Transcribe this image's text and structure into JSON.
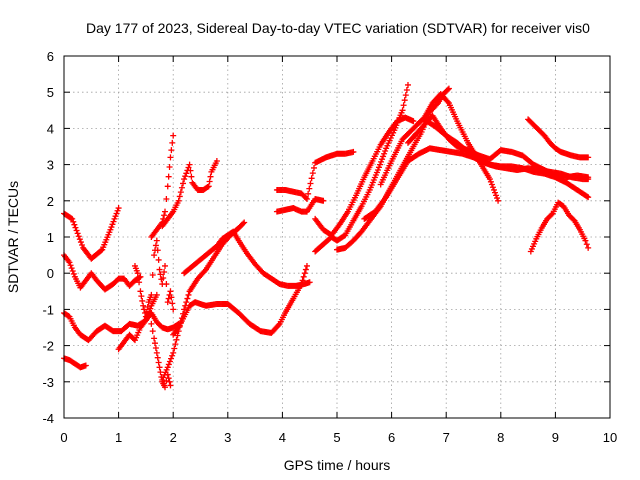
{
  "chart_data": {
    "type": "scatter",
    "title": "Day 177 of 2023, Sidereal Day-to-day VTEC variation (SDTVAR) for receiver vis0",
    "xlabel": "GPS time / hours",
    "ylabel": "SDTVAR / TECUs",
    "xlim": [
      0,
      10
    ],
    "ylim": [
      -4,
      6
    ],
    "xticks": [
      "0",
      "1",
      "2",
      "3",
      "4",
      "5",
      "6",
      "7",
      "8",
      "9",
      "10"
    ],
    "yticks": [
      "-4",
      "-3",
      "-2",
      "-1",
      "0",
      "1",
      "2",
      "3",
      "4",
      "5",
      "6"
    ],
    "grid": true,
    "marker": "+",
    "color": "#ff0000",
    "series": [
      {
        "x": [
          0.0,
          0.15,
          0.25,
          0.35,
          0.5,
          0.7,
          0.85,
          1.0
        ],
        "y": [
          1.65,
          1.5,
          1.1,
          0.7,
          0.4,
          0.65,
          1.2,
          1.8
        ]
      },
      {
        "x": [
          0.0,
          0.1,
          0.2,
          0.3,
          0.4,
          0.5,
          0.6,
          0.75,
          0.9,
          1.0,
          1.1,
          1.2,
          1.3,
          1.4
        ],
        "y": [
          0.5,
          0.3,
          -0.1,
          -0.4,
          -0.2,
          0.0,
          -0.2,
          -0.45,
          -0.3,
          -0.15,
          -0.15,
          -0.35,
          -0.2,
          -0.1
        ]
      },
      {
        "x": [
          0.0,
          0.1,
          0.2,
          0.3,
          0.45,
          0.6,
          0.75,
          0.9,
          1.05,
          1.2,
          1.35,
          1.5,
          1.6,
          1.7,
          1.8,
          1.9,
          2.0,
          2.1
        ],
        "y": [
          -1.1,
          -1.2,
          -1.5,
          -1.7,
          -1.85,
          -1.6,
          -1.45,
          -1.6,
          -1.6,
          -1.4,
          -1.45,
          -1.3,
          -1.1,
          -1.35,
          -1.5,
          -1.55,
          -1.5,
          -1.4
        ]
      },
      {
        "x": [
          0.0,
          0.1,
          0.2,
          0.3,
          0.4
        ],
        "y": [
          -2.35,
          -2.4,
          -2.5,
          -2.6,
          -2.55
        ]
      },
      {
        "x": [
          1.0,
          1.1,
          1.2,
          1.3,
          1.4,
          1.5,
          1.6,
          1.7
        ],
        "y": [
          -2.1,
          -1.9,
          -1.7,
          -1.85,
          -1.5,
          -1.3,
          -0.9,
          -0.6
        ]
      },
      {
        "x": [
          1.3,
          1.35,
          1.4,
          1.45,
          1.5,
          1.55,
          1.6,
          1.65,
          1.7,
          1.75,
          1.8,
          1.85,
          1.9,
          1.95,
          2.0
        ],
        "y": [
          0.2,
          0.0,
          -0.5,
          -0.9,
          -1.2,
          -0.8,
          -0.6,
          0.5,
          0.9,
          0.1,
          -0.3,
          0.2,
          -0.8,
          -0.5,
          -1.0
        ]
      },
      {
        "x": [
          1.6,
          1.65,
          1.7,
          1.75,
          1.8,
          1.85,
          1.9,
          1.95
        ],
        "y": [
          -1.4,
          -1.8,
          -2.2,
          -2.6,
          -3.0,
          -3.15,
          -2.8,
          -3.1
        ]
      },
      {
        "x": [
          1.6,
          1.7,
          1.8,
          1.85,
          1.9,
          1.95,
          2.0
        ],
        "y": [
          1.0,
          1.2,
          1.4,
          1.7,
          2.4,
          3.2,
          3.8
        ]
      },
      {
        "x": [
          1.8,
          1.9,
          2.0,
          2.1,
          2.2,
          2.3,
          2.35,
          2.45,
          2.55,
          2.65,
          2.7,
          2.8
        ],
        "y": [
          1.3,
          1.5,
          1.7,
          2.0,
          2.6,
          3.0,
          2.5,
          2.3,
          2.3,
          2.4,
          2.8,
          3.1
        ]
      },
      {
        "x": [
          1.8,
          1.9,
          2.0,
          2.1,
          2.2,
          2.3,
          2.45,
          2.6,
          2.75,
          2.9,
          3.05,
          3.2,
          3.3
        ],
        "y": [
          -2.95,
          -2.6,
          -2.2,
          -1.6,
          -1.0,
          -0.5,
          -0.15,
          0.1,
          0.45,
          0.8,
          1.05,
          1.25,
          1.4
        ]
      },
      {
        "x": [
          2.0,
          2.1,
          2.2,
          2.3,
          2.4,
          2.6,
          2.8,
          3.0,
          3.2,
          3.4,
          3.6,
          3.8,
          3.95,
          4.05,
          4.2,
          4.35,
          4.45
        ],
        "y": [
          -1.7,
          -1.5,
          -1.2,
          -0.9,
          -0.8,
          -0.9,
          -0.85,
          -0.85,
          -1.1,
          -1.4,
          -1.6,
          -1.65,
          -1.4,
          -1.1,
          -0.7,
          -0.3,
          0.2
        ]
      },
      {
        "x": [
          2.2,
          2.4,
          2.6,
          2.8,
          2.9,
          3.0,
          3.1,
          3.2,
          3.35,
          3.5,
          3.65,
          3.8,
          3.95,
          4.1,
          4.25,
          4.4,
          4.5
        ],
        "y": [
          0.0,
          0.25,
          0.5,
          0.75,
          0.95,
          1.05,
          1.15,
          0.9,
          0.55,
          0.25,
          0.0,
          -0.15,
          -0.3,
          -0.35,
          -0.35,
          -0.3,
          -0.25
        ]
      },
      {
        "x": [
          3.9,
          4.05,
          4.2,
          4.35,
          4.45,
          4.6,
          4.8,
          5.0,
          5.15,
          5.3
        ],
        "y": [
          2.3,
          2.3,
          2.25,
          2.2,
          2.05,
          3.05,
          3.2,
          3.3,
          3.3,
          3.35
        ]
      },
      {
        "x": [
          3.9,
          4.05,
          4.2,
          4.35,
          4.45,
          4.6,
          4.75
        ],
        "y": [
          1.7,
          1.75,
          1.8,
          1.7,
          1.7,
          2.05,
          2.0
        ]
      },
      {
        "x": [
          4.6,
          4.75,
          4.9,
          5.0,
          5.15,
          5.3,
          5.45,
          5.6,
          5.75,
          5.9,
          6.05,
          6.2,
          6.3
        ],
        "y": [
          0.6,
          0.8,
          1.0,
          0.9,
          1.05,
          1.45,
          1.85,
          2.3,
          2.85,
          3.45,
          3.95,
          4.5,
          5.2
        ]
      },
      {
        "x": [
          4.6,
          4.75,
          4.9,
          5.05,
          5.2,
          5.35,
          5.5,
          5.65,
          5.8,
          5.95,
          6.1,
          6.25,
          6.4
        ],
        "y": [
          1.5,
          1.2,
          1.05,
          1.35,
          1.7,
          2.15,
          2.65,
          3.1,
          3.55,
          3.9,
          4.2,
          4.3,
          4.2
        ]
      },
      {
        "x": [
          5.0,
          5.15,
          5.3,
          5.45,
          5.6,
          5.8,
          6.0,
          6.2,
          6.4,
          6.55,
          6.7,
          6.85,
          6.95,
          7.05
        ],
        "y": [
          0.65,
          0.7,
          0.9,
          1.15,
          1.45,
          1.85,
          2.4,
          2.95,
          3.5,
          3.9,
          4.45,
          4.7,
          4.95,
          5.1
        ]
      },
      {
        "x": [
          5.5,
          5.7,
          5.9,
          6.1,
          6.3,
          6.5,
          6.7,
          6.9,
          7.1,
          7.3,
          7.5,
          7.7,
          7.9,
          8.1,
          8.3,
          8.5,
          8.7,
          8.9,
          9.1,
          9.3,
          9.5,
          9.6
        ],
        "y": [
          1.5,
          1.7,
          2.1,
          2.6,
          3.1,
          3.3,
          3.45,
          3.4,
          3.35,
          3.3,
          3.2,
          3.05,
          2.95,
          2.9,
          2.85,
          2.9,
          2.85,
          2.8,
          2.75,
          2.65,
          2.6,
          2.6
        ]
      },
      {
        "x": [
          5.8,
          6.0,
          6.2,
          6.4,
          6.6,
          6.75,
          6.9,
          7.05,
          7.2,
          7.4,
          7.6,
          7.8,
          7.95
        ],
        "y": [
          2.45,
          3.1,
          3.7,
          4.0,
          4.3,
          4.7,
          4.95,
          4.7,
          4.2,
          3.6,
          3.1,
          2.6,
          2.0
        ]
      },
      {
        "x": [
          6.3,
          6.45,
          6.6,
          6.75,
          6.9,
          7.05,
          7.2,
          7.4,
          7.6,
          7.8,
          8.0,
          8.2,
          8.4,
          8.6,
          8.8,
          9.0,
          9.2,
          9.4,
          9.6
        ],
        "y": [
          3.6,
          3.85,
          4.1,
          4.35,
          4.0,
          3.7,
          3.5,
          3.4,
          3.25,
          3.15,
          3.4,
          3.35,
          3.25,
          3.0,
          2.85,
          2.7,
          2.65,
          2.7,
          2.65
        ]
      },
      {
        "x": [
          6.6,
          6.8,
          7.0,
          7.2,
          7.4,
          7.6,
          7.8,
          8.0,
          8.2,
          8.4,
          8.6,
          8.8,
          9.0,
          9.2,
          9.4,
          9.6
        ],
        "y": [
          4.25,
          4.05,
          3.8,
          3.6,
          3.35,
          3.15,
          3.0,
          2.95,
          2.95,
          2.9,
          2.8,
          2.75,
          2.65,
          2.5,
          2.3,
          2.1
        ]
      },
      {
        "x": [
          8.5,
          8.6,
          8.7,
          8.8,
          8.9,
          9.0,
          9.1,
          9.2,
          9.3,
          9.45,
          9.6
        ],
        "y": [
          4.25,
          4.1,
          3.95,
          3.8,
          3.6,
          3.45,
          3.35,
          3.3,
          3.25,
          3.2,
          3.2
        ]
      },
      {
        "x": [
          8.55,
          8.65,
          8.75,
          8.85,
          8.95,
          9.05,
          9.15,
          9.25,
          9.35,
          9.45,
          9.55,
          9.6
        ],
        "y": [
          0.6,
          0.95,
          1.25,
          1.5,
          1.65,
          1.95,
          1.85,
          1.6,
          1.45,
          1.2,
          0.9,
          0.7
        ]
      }
    ]
  }
}
